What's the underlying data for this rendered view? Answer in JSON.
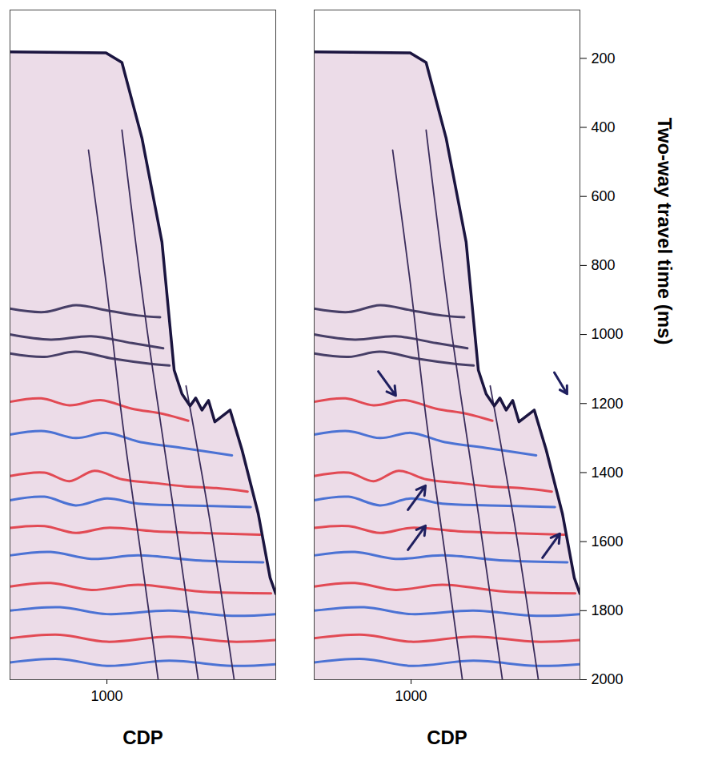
{
  "chart_data": {
    "type": "seismic_section",
    "xlabel": "CDP",
    "ylabel": "Two-way travel time (ms)",
    "xlim": [
      690,
      1540
    ],
    "xticks": [
      1000
    ],
    "ylim": [
      60,
      2000
    ],
    "yticks": [
      200,
      400,
      600,
      800,
      1000,
      1200,
      1400,
      1600,
      1800,
      2000
    ],
    "seafloor": {
      "color": "#1b1540",
      "points": [
        [
          690,
          181
        ],
        [
          997,
          184
        ],
        [
          1048,
          212
        ],
        [
          1112,
          431
        ],
        [
          1176,
          732
        ],
        [
          1215,
          1103
        ],
        [
          1240,
          1172
        ],
        [
          1266,
          1207
        ],
        [
          1284,
          1184
        ],
        [
          1304,
          1219
        ],
        [
          1325,
          1191
        ],
        [
          1345,
          1253
        ],
        [
          1394,
          1219
        ],
        [
          1432,
          1334
        ],
        [
          1484,
          1519
        ],
        [
          1522,
          1705
        ],
        [
          1540,
          1751
        ]
      ]
    },
    "faults": {
      "color": "#3b2d5c",
      "lines": [
        [
          [
            941,
            466
          ],
          [
            997,
            848
          ],
          [
            1048,
            1242
          ],
          [
            1112,
            1658
          ],
          [
            1164,
            2000
          ]
        ],
        [
          [
            1048,
            408
          ],
          [
            1125,
            964
          ],
          [
            1215,
            1519
          ],
          [
            1292,
            2000
          ]
        ],
        [
          [
            1253,
            1149
          ],
          [
            1330,
            1543
          ],
          [
            1407,
            2000
          ]
        ]
      ]
    },
    "reflectors": [
      {
        "color": "#2a2350",
        "points": [
          [
            690,
            925
          ],
          [
            800,
            935
          ],
          [
            900,
            915
          ],
          [
            1000,
            930
          ],
          [
            1100,
            945
          ],
          [
            1170,
            950
          ]
        ]
      },
      {
        "color": "#2a2350",
        "points": [
          [
            690,
            1000
          ],
          [
            820,
            1015
          ],
          [
            950,
            1005
          ],
          [
            1080,
            1025
          ],
          [
            1180,
            1040
          ]
        ]
      },
      {
        "color": "#2a2350",
        "points": [
          [
            690,
            1055
          ],
          [
            800,
            1065
          ],
          [
            900,
            1050
          ],
          [
            1020,
            1070
          ],
          [
            1140,
            1085
          ],
          [
            1200,
            1090
          ]
        ]
      },
      {
        "color": "#e0303a",
        "points": [
          [
            690,
            1195
          ],
          [
            790,
            1185
          ],
          [
            880,
            1205
          ],
          [
            980,
            1190
          ],
          [
            1080,
            1215
          ],
          [
            1180,
            1230
          ],
          [
            1260,
            1250
          ]
        ]
      },
      {
        "color": "#2f5fd0",
        "points": [
          [
            690,
            1290
          ],
          [
            800,
            1280
          ],
          [
            900,
            1300
          ],
          [
            1000,
            1285
          ],
          [
            1100,
            1310
          ],
          [
            1250,
            1330
          ],
          [
            1400,
            1350
          ]
        ]
      },
      {
        "color": "#e0303a",
        "points": [
          [
            690,
            1410
          ],
          [
            800,
            1400
          ],
          [
            880,
            1425
          ],
          [
            960,
            1395
          ],
          [
            1050,
            1420
          ],
          [
            1150,
            1430
          ],
          [
            1250,
            1440
          ],
          [
            1350,
            1445
          ],
          [
            1450,
            1455
          ]
        ]
      },
      {
        "color": "#2f5fd0",
        "points": [
          [
            690,
            1480
          ],
          [
            800,
            1470
          ],
          [
            900,
            1495
          ],
          [
            1000,
            1475
          ],
          [
            1100,
            1490
          ],
          [
            1250,
            1495
          ],
          [
            1460,
            1500
          ]
        ]
      },
      {
        "color": "#e0303a",
        "points": [
          [
            690,
            1560
          ],
          [
            800,
            1555
          ],
          [
            900,
            1575
          ],
          [
            1000,
            1560
          ],
          [
            1150,
            1570
          ],
          [
            1300,
            1575
          ],
          [
            1490,
            1580
          ]
        ]
      },
      {
        "color": "#2f5fd0",
        "points": [
          [
            690,
            1640
          ],
          [
            820,
            1630
          ],
          [
            950,
            1650
          ],
          [
            1100,
            1640
          ],
          [
            1300,
            1655
          ],
          [
            1500,
            1660
          ]
        ]
      },
      {
        "color": "#e0303a",
        "points": [
          [
            690,
            1730
          ],
          [
            820,
            1720
          ],
          [
            950,
            1740
          ],
          [
            1100,
            1725
          ],
          [
            1300,
            1745
          ],
          [
            1525,
            1750
          ]
        ]
      },
      {
        "color": "#2f5fd0",
        "points": [
          [
            690,
            1800
          ],
          [
            850,
            1790
          ],
          [
            1000,
            1810
          ],
          [
            1200,
            1800
          ],
          [
            1400,
            1815
          ],
          [
            1540,
            1810
          ]
        ]
      },
      {
        "color": "#e0303a",
        "points": [
          [
            690,
            1880
          ],
          [
            850,
            1870
          ],
          [
            1000,
            1890
          ],
          [
            1200,
            1875
          ],
          [
            1400,
            1890
          ],
          [
            1540,
            1885
          ]
        ]
      },
      {
        "color": "#2f5fd0",
        "points": [
          [
            690,
            1950
          ],
          [
            850,
            1940
          ],
          [
            1000,
            1960
          ],
          [
            1200,
            1945
          ],
          [
            1400,
            1960
          ],
          [
            1540,
            1955
          ]
        ]
      }
    ],
    "panels": [
      {
        "tick_labels": "x",
        "arrows": []
      },
      {
        "arrows": [
          {
            "from": [
              895,
              1107
            ],
            "to": [
              951,
              1177
            ]
          },
          {
            "from": [
              990,
              1508
            ],
            "to": [
              1046,
              1438
            ]
          },
          {
            "from": [
              990,
              1624
            ],
            "to": [
              1046,
              1554
            ]
          },
          {
            "from": [
              1458,
              1110
            ],
            "to": [
              1499,
              1172
            ]
          },
          {
            "from": [
              1420,
              1647
            ],
            "to": [
              1476,
              1577
            ]
          }
        ]
      }
    ]
  }
}
